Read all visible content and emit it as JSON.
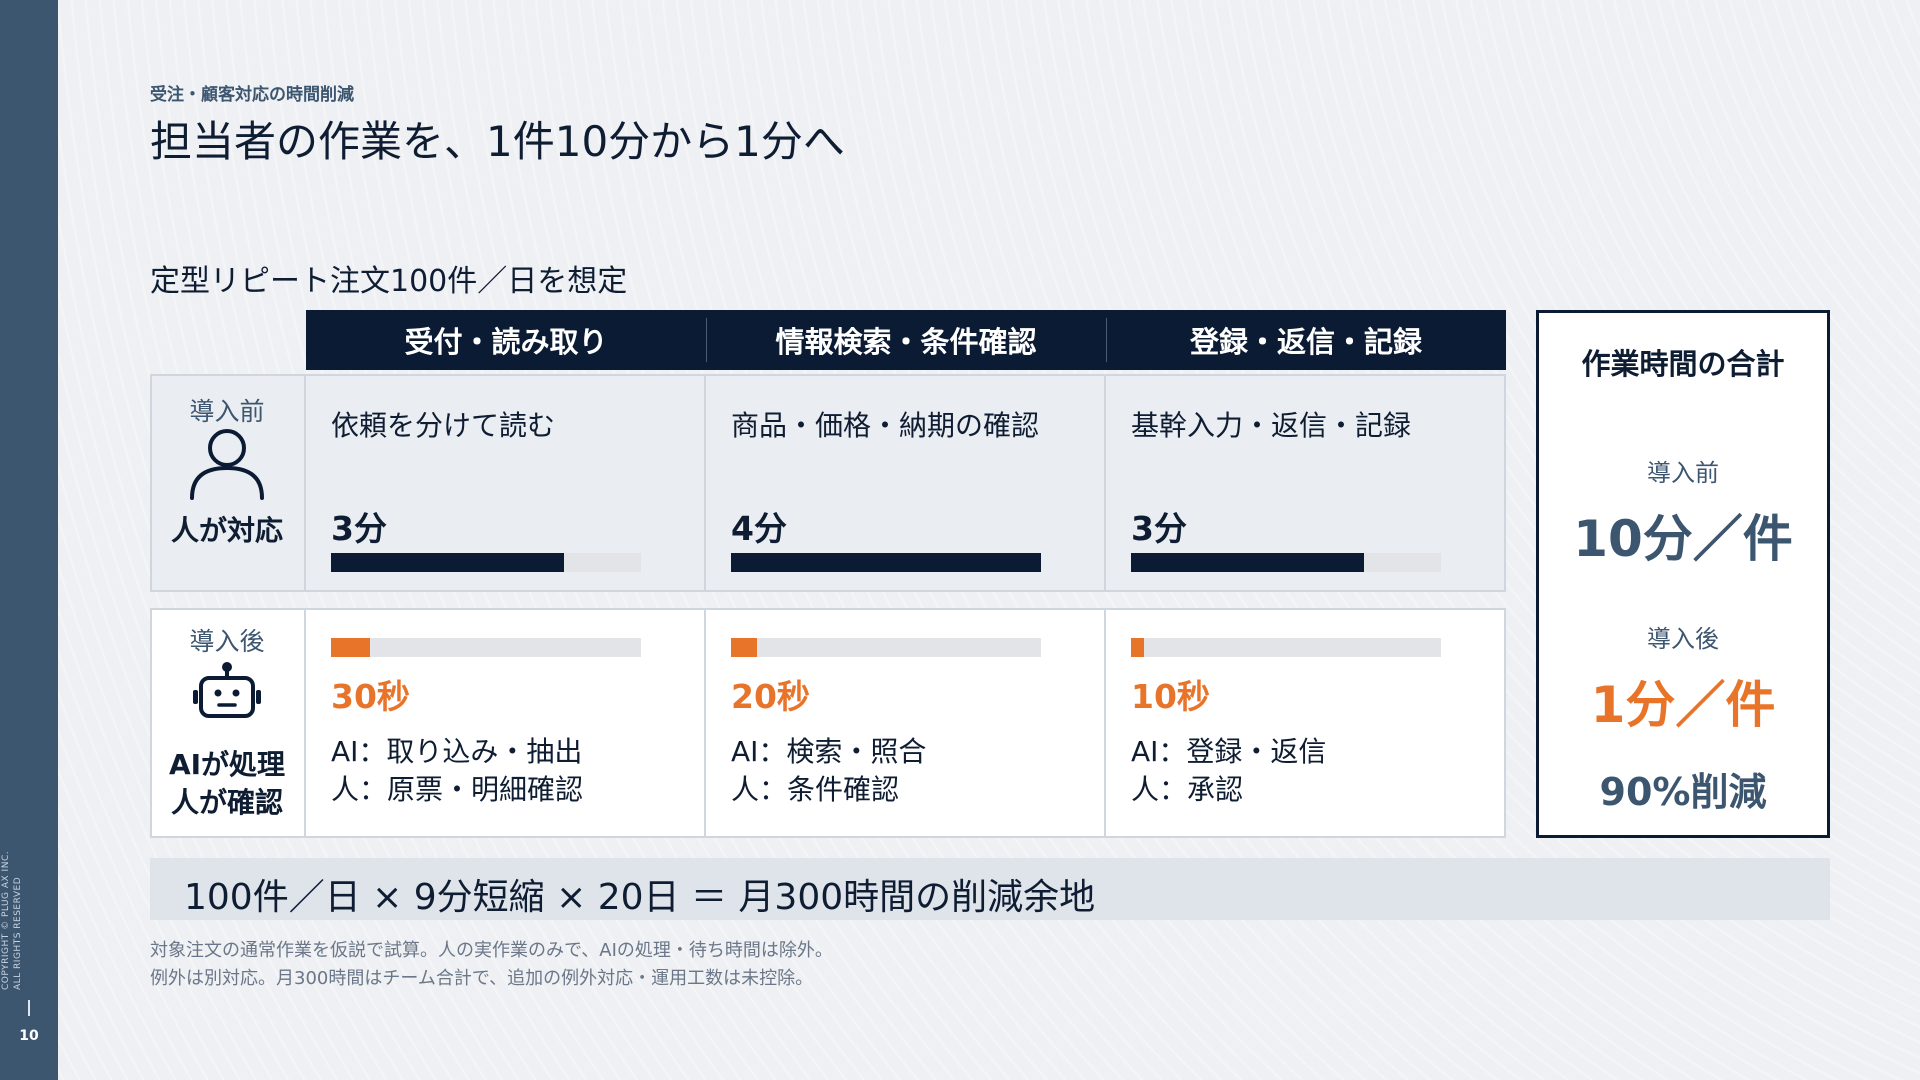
{
  "sidebar": {
    "copyright_line1": "COPYRIGHT © PLUG AX INC.",
    "copyright_line2": "ALL RIGHTS RESERVED",
    "page_number": "10"
  },
  "header": {
    "eyebrow": "受注・顧客対応の時間削減",
    "title": "担当者の作業を、1件10分から1分へ"
  },
  "subtitle": "定型リピート注文100件／日を想定",
  "columns": [
    {
      "label": "受付・読み取り"
    },
    {
      "label": "情報検索・条件確認"
    },
    {
      "label": "登録・返信・記録"
    }
  ],
  "before": {
    "label_small": "導入前",
    "label_big": "人が対応",
    "icon": "person-icon",
    "cells": [
      {
        "desc": "依頼を分けて読む",
        "time": "3分",
        "fraction": 0.75
      },
      {
        "desc": "商品・価格・納期の確認",
        "time": "4分",
        "fraction": 1.0
      },
      {
        "desc": "基幹入力・返信・記録",
        "time": "3分",
        "fraction": 0.75
      }
    ]
  },
  "after": {
    "label_small": "導入後",
    "label_big_line1": "AIが処理",
    "label_big_line2": "人が確認",
    "icon": "robot-icon",
    "cells": [
      {
        "time": "30秒",
        "fraction": 0.125,
        "ai": "AI：取り込み・抽出",
        "human": "人：原票・明細確認"
      },
      {
        "time": "20秒",
        "fraction": 0.083,
        "ai": "AI：検索・照合",
        "human": "人：条件確認"
      },
      {
        "time": "10秒",
        "fraction": 0.042,
        "ai": "AI：登録・返信",
        "human": "人：承認"
      }
    ]
  },
  "total": {
    "title": "作業時間の合計",
    "before_label": "導入前",
    "before_value": "10分／件",
    "after_label": "導入後",
    "after_value": "1分／件",
    "reduction": "90%削減"
  },
  "summary": "100件／日 × 9分短縮 × 20日 ＝ 月300時間の削減余地",
  "footnotes": [
    "対象注文の通常作業を仮説で試算。人の実作業のみで、AIの処理・待ち時間は除外。",
    "例外は別対応。月300時間はチーム合計で、追加の例外対応・運用工数は未控除。"
  ],
  "colors": {
    "navy": "#0b1b33",
    "slate": "#3d5670",
    "orange": "#e8742a"
  }
}
